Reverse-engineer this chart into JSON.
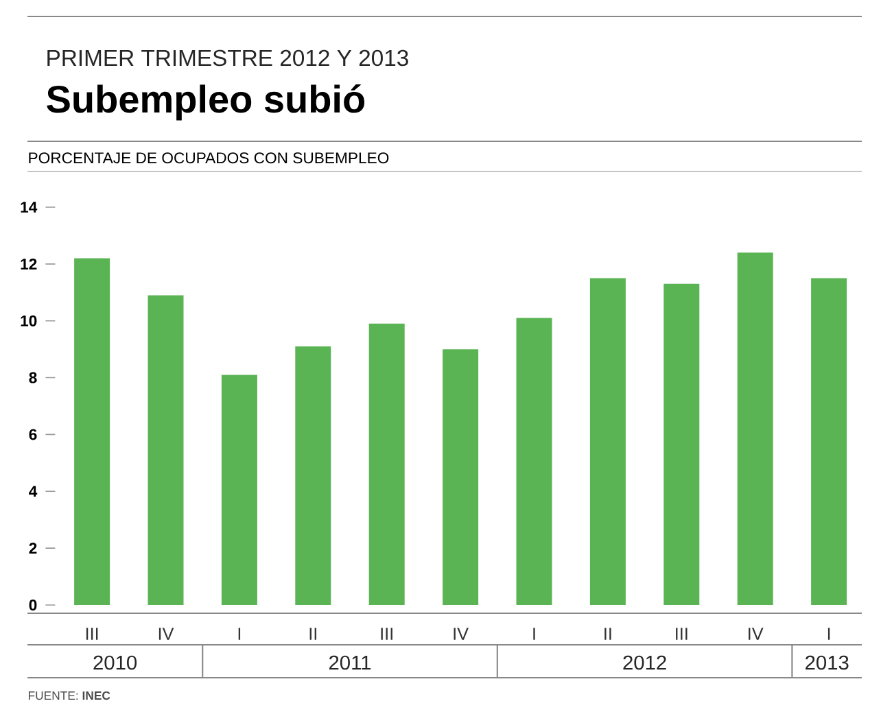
{
  "chart_data": {
    "type": "bar",
    "subtitle": "PRIMER TRIMESTRE 2012 Y 2013",
    "title": "Subempleo subió",
    "ylabel": "PORCENTAJE DE OCUPADOS CON SUBEMPLEO",
    "categories": [
      "III",
      "IV",
      "I",
      "II",
      "III",
      "IV",
      "I",
      "II",
      "III",
      "IV",
      "I"
    ],
    "values": [
      12.2,
      10.9,
      8.1,
      9.1,
      9.9,
      9.0,
      10.1,
      11.5,
      11.3,
      12.4,
      11.5
    ],
    "color": "#5ab453",
    "ylim": [
      0,
      14
    ],
    "yticks": [
      0,
      2,
      4,
      6,
      8,
      10,
      12,
      14
    ],
    "annotations": [
      "2010",
      "2011",
      "2012",
      "2013",
      "FUENTE: **INEC**"
    ]
  }
}
